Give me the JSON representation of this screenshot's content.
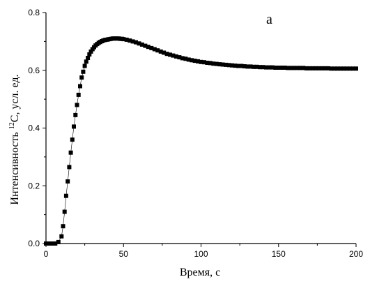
{
  "chart_data": {
    "type": "scatter",
    "panel_label": "a",
    "xlabel": "Время, с",
    "ylabel_prefix": "Интенсивность ",
    "ylabel_sup": "12",
    "ylabel_suffix": "C,  усл. ед.",
    "xlim": [
      0,
      200
    ],
    "ylim": [
      0,
      0.8
    ],
    "x_ticks": [
      "0",
      "50",
      "100",
      "150",
      "200"
    ],
    "y_ticks": [
      "0.0",
      "0.2",
      "0.4",
      "0.6",
      "0.8"
    ],
    "series": [
      {
        "x": [
          0,
          2,
          4,
          6,
          8,
          10,
          11,
          12,
          13,
          14,
          15,
          16,
          17,
          18,
          19,
          20,
          21,
          22,
          23,
          24,
          25,
          26,
          27,
          28,
          29,
          30,
          31,
          32,
          33,
          34,
          35,
          36,
          37,
          38,
          39,
          40,
          41,
          42,
          43,
          44,
          45,
          46,
          47,
          48,
          49,
          50,
          52,
          54,
          56,
          58,
          60,
          62,
          64,
          66,
          68,
          70,
          72,
          74,
          76,
          78,
          80,
          82,
          84,
          86,
          88,
          90,
          92,
          94,
          96,
          98,
          100,
          102,
          104,
          106,
          108,
          110,
          112,
          114,
          116,
          118,
          120,
          122,
          124,
          126,
          128,
          130,
          132,
          134,
          136,
          138,
          140,
          142,
          144,
          146,
          148,
          150,
          152,
          154,
          156,
          158,
          160,
          162,
          164,
          166,
          168,
          170,
          172,
          174,
          176,
          178,
          180,
          182,
          184,
          186,
          188,
          190,
          192,
          194,
          196,
          198,
          200
        ],
        "y": [
          0,
          0,
          0,
          0,
          0.005,
          0.025,
          0.06,
          0.11,
          0.165,
          0.215,
          0.265,
          0.315,
          0.36,
          0.405,
          0.445,
          0.48,
          0.515,
          0.545,
          0.575,
          0.595,
          0.615,
          0.63,
          0.643,
          0.655,
          0.665,
          0.673,
          0.68,
          0.686,
          0.691,
          0.695,
          0.698,
          0.701,
          0.703,
          0.705,
          0.706,
          0.707,
          0.708,
          0.709,
          0.71,
          0.71,
          0.71,
          0.71,
          0.71,
          0.709,
          0.709,
          0.708,
          0.706,
          0.703,
          0.7,
          0.697,
          0.693,
          0.689,
          0.685,
          0.681,
          0.677,
          0.673,
          0.669,
          0.665,
          0.661,
          0.657,
          0.654,
          0.651,
          0.648,
          0.645,
          0.642,
          0.64,
          0.637,
          0.635,
          0.633,
          0.631,
          0.629,
          0.628,
          0.626,
          0.625,
          0.623,
          0.622,
          0.621,
          0.62,
          0.619,
          0.618,
          0.617,
          0.616,
          0.615,
          0.615,
          0.614,
          0.613,
          0.613,
          0.612,
          0.612,
          0.611,
          0.611,
          0.61,
          0.61,
          0.61,
          0.609,
          0.609,
          0.609,
          0.609,
          0.608,
          0.608,
          0.608,
          0.608,
          0.608,
          0.608,
          0.607,
          0.607,
          0.607,
          0.607,
          0.607,
          0.607,
          0.607,
          0.607,
          0.606,
          0.606,
          0.606,
          0.606,
          0.606,
          0.606,
          0.606,
          0.606,
          0.606
        ]
      }
    ]
  }
}
